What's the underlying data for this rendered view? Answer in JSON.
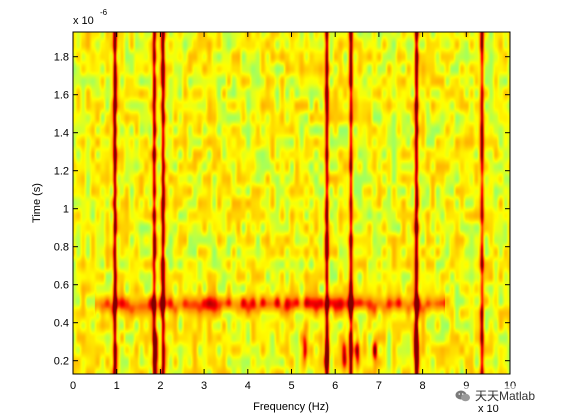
{
  "chart_data": {
    "type": "heatmap",
    "title": "",
    "xlabel": "Frequency (Hz)",
    "ylabel": "Time (s)",
    "x_exponent_prefix": "x 10",
    "x_exponent_power": "",
    "y_exponent_prefix": "x 10",
    "y_exponent_power": "-6",
    "xlim": [
      0,
      10
    ],
    "ylim": [
      0.13,
      1.93
    ],
    "xticks": [
      "0",
      "1",
      "2",
      "3",
      "4",
      "5",
      "6",
      "7",
      "8",
      "9",
      "10"
    ],
    "xtick_values": [
      0,
      1,
      2,
      3,
      4,
      5,
      6,
      7,
      8,
      9,
      10
    ],
    "yticks": [
      "0.2",
      "0.4",
      "0.6",
      "0.8",
      "1",
      "1.2",
      "1.4",
      "1.6",
      "1.8"
    ],
    "ytick_values": [
      0.2,
      0.4,
      0.6,
      0.8,
      1.0,
      1.2,
      1.4,
      1.6,
      1.8
    ],
    "colormap": [
      "#00ffff",
      "#80ff80",
      "#ffff00",
      "#ff8000",
      "#ff0000",
      "#800000"
    ],
    "vertical_ridges": [
      {
        "x": 0.95,
        "intensity": 0.92
      },
      {
        "x": 1.85,
        "intensity": 0.85
      },
      {
        "x": 2.05,
        "intensity": 0.9
      },
      {
        "x": 5.8,
        "intensity": 0.88
      },
      {
        "x": 6.35,
        "intensity": 0.85
      },
      {
        "x": 7.85,
        "intensity": 0.95
      },
      {
        "x": 9.35,
        "intensity": 0.7
      }
    ],
    "horizontal_band": {
      "y": 0.5,
      "x_range": [
        0.5,
        8.5
      ],
      "intensity": 0.8
    },
    "low_time_peaks": [
      {
        "x": 1.9,
        "y": 0.25
      },
      {
        "x": 5.3,
        "y": 0.25
      },
      {
        "x": 5.8,
        "y": 0.25
      },
      {
        "x": 6.2,
        "y": 0.25
      },
      {
        "x": 6.5,
        "y": 0.25
      },
      {
        "x": 6.9,
        "y": 0.25
      },
      {
        "x": 7.85,
        "y": 0.28
      }
    ]
  },
  "watermark": {
    "text": "天天Matlab"
  }
}
